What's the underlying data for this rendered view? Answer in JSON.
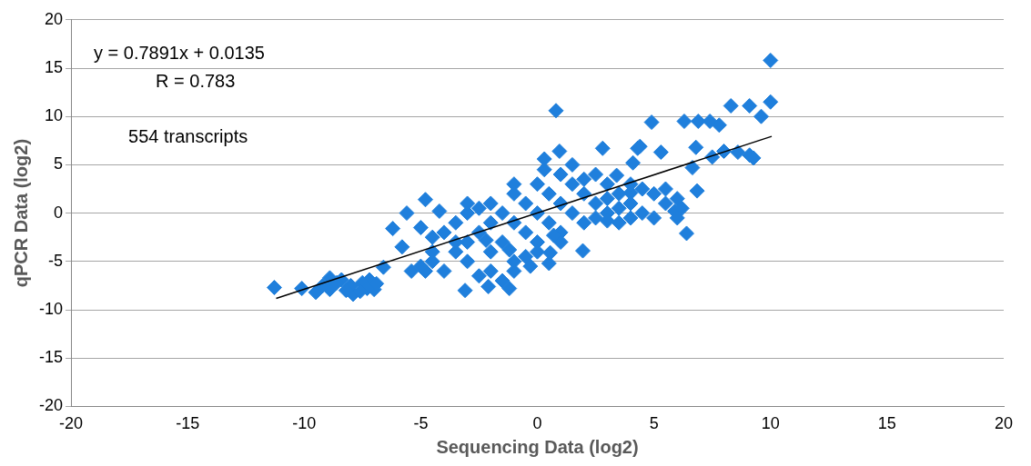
{
  "chart_data": {
    "type": "scatter",
    "xlabel": "Sequencing Data (log2)",
    "ylabel": "qPCR Data (log2)",
    "annotations": [
      "y = 0.7891x + 0.0135",
      "R = 0.783",
      "554 transcripts"
    ],
    "xlim": [
      -20,
      20
    ],
    "ylim": [
      -20,
      20
    ],
    "xticks": [
      -20,
      -15,
      -10,
      -5,
      0,
      5,
      10,
      15,
      20
    ],
    "yticks": [
      -20,
      -15,
      -10,
      -5,
      0,
      5,
      10,
      15,
      20
    ],
    "grid": "y",
    "legend": false,
    "marker": "diamond",
    "series": [
      {
        "color": "#1f7fdc",
        "x": [
          -11.28,
          -10.1,
          -9.5,
          -8.9,
          -8.9,
          -8.4,
          -7.9,
          -7.2,
          -7.0,
          -6.6,
          -6.2,
          -5.8,
          -5.6,
          -5.4,
          -4.8,
          -4.8,
          -4.2,
          -3.1,
          -2.1,
          -1.2,
          0.3,
          0.8,
          0.95,
          1.95,
          2.8,
          4.3,
          4.4,
          4.9,
          5.3,
          6.3,
          6.9,
          7.4,
          7.8,
          8.3,
          9.1,
          9.6,
          10.0,
          10.0,
          9.1,
          9.27,
          6.65,
          6.85,
          6.4,
          5.9,
          6.8,
          7.5,
          8.0,
          8.6,
          4.1,
          0.5,
          0.55,
          4.0,
          3.4,
          -8.6,
          -8.0,
          -7.5,
          -7.3,
          -6.9,
          -7.6,
          -9.2,
          -8.2,
          -4,
          -3.5,
          -3,
          -3,
          -2.5,
          -2,
          -2,
          -2,
          -1.5,
          -1.5,
          -1,
          -1,
          -1,
          -0.5,
          -0.5,
          0,
          0,
          0,
          0.5,
          0.5,
          1,
          1,
          1,
          1.5,
          1.5,
          2,
          2,
          2.5,
          2.5,
          3,
          3,
          3.5,
          3.5,
          4,
          4,
          4.5,
          5,
          5,
          5.5,
          6,
          6,
          -4.5,
          -4,
          -3.5,
          -3,
          -2.5,
          -2,
          -1.5,
          -1,
          -0.5,
          -3.5,
          -4.5,
          -4.5,
          -5,
          -5,
          -3,
          -2.5,
          -1,
          0.3,
          1.5,
          2,
          3,
          3.5,
          4.5,
          5.5,
          6.2,
          2.5,
          1,
          0,
          -0.3,
          -1.2,
          0.7,
          4,
          3,
          -2.2
        ],
        "values": [
          -7.7,
          -7.8,
          -8.2,
          -6.7,
          -7.9,
          -6.9,
          -8.4,
          -6.9,
          -7.9,
          -5.6,
          -1.6,
          -3.5,
          0,
          -6.0,
          1.4,
          -6.0,
          0.2,
          -8.0,
          -7.6,
          -7.8,
          5.6,
          10.6,
          6.4,
          -3.9,
          6.7,
          6.7,
          6.9,
          9.4,
          6.3,
          9.5,
          9.5,
          9.5,
          9.1,
          11.1,
          11.1,
          10.0,
          11.5,
          15.8,
          6.0,
          5.7,
          4.7,
          2.3,
          -2.1,
          0.2,
          6.8,
          5.8,
          6.4,
          6.3,
          5.2,
          -5.2,
          -4.1,
          2.1,
          3.9,
          -7.2,
          -7.5,
          -7.2,
          -7.8,
          -7.3,
          -8.1,
          -7.5,
          -8.0,
          -2,
          -1,
          0,
          -3,
          -2,
          -1,
          1,
          -4,
          0,
          -3,
          2,
          -1,
          -5,
          1,
          -2,
          0,
          3,
          -3,
          2,
          -1,
          1,
          4,
          -2,
          3,
          0,
          2,
          -1,
          4,
          1,
          3,
          0,
          2,
          -1,
          1,
          3,
          0,
          2,
          -0.5,
          1,
          1.5,
          -0.5,
          -5,
          -6,
          -4,
          -5,
          -6.5,
          -6,
          -7,
          -6,
          -4.5,
          -3,
          -2.5,
          -4,
          -1.5,
          -5.5,
          1,
          0.5,
          3,
          4.5,
          5,
          3.5,
          1.5,
          0.5,
          2.5,
          2.5,
          0.5,
          -0.5,
          -3,
          -4,
          -5.5,
          -3.8,
          -2.3,
          -0.5,
          -0.8,
          -2.8
        ]
      },
      {
        "type": "line",
        "color": "#000000",
        "marker": "none",
        "x": [
          -11.2,
          10.05
        ],
        "values": [
          -8.82,
          7.94
        ]
      }
    ]
  }
}
